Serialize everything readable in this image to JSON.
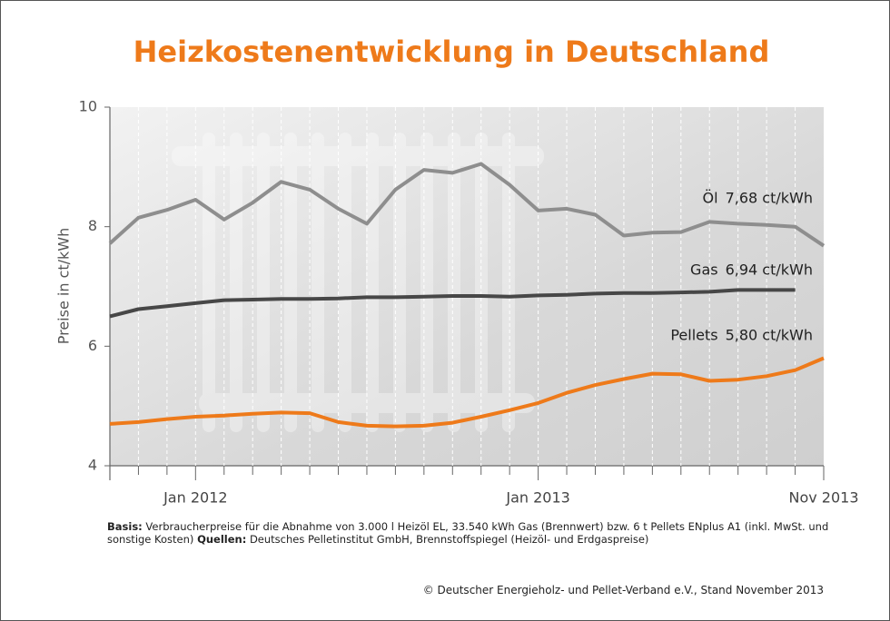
{
  "chart_data": {
    "type": "line",
    "title": "Heizkostenentwicklung in Deutschland",
    "y_label": "Preise in ct/kWh",
    "categories": [
      null,
      null,
      null,
      "Jan 2012",
      null,
      null,
      null,
      null,
      null,
      null,
      null,
      null,
      null,
      null,
      null,
      "Jan 2013",
      null,
      null,
      null,
      null,
      null,
      null,
      null,
      null,
      null,
      "Nov 2013"
    ],
    "ylim": [
      4,
      10
    ],
    "yticks": [
      4,
      6,
      8,
      10
    ],
    "grid": true,
    "series": [
      {
        "name": "Öl",
        "color": "#8e8e8e",
        "end_label": "7,68 ct/kWh",
        "values": [
          7.72,
          8.15,
          8.28,
          8.45,
          8.12,
          8.4,
          8.75,
          8.62,
          8.3,
          8.05,
          8.62,
          8.95,
          8.9,
          9.05,
          8.7,
          8.27,
          8.3,
          8.2,
          7.85,
          7.9,
          7.91,
          8.08,
          8.05,
          8.03,
          8.0,
          7.68
        ]
      },
      {
        "name": "Gas",
        "color": "#474747",
        "end_label": "6,94 ct/kWh",
        "values": [
          6.5,
          6.62,
          6.67,
          6.72,
          6.77,
          6.78,
          6.79,
          6.79,
          6.8,
          6.82,
          6.82,
          6.83,
          6.84,
          6.84,
          6.83,
          6.85,
          6.86,
          6.88,
          6.89,
          6.89,
          6.9,
          6.91,
          6.94,
          6.94,
          6.94,
          null
        ]
      },
      {
        "name": "Pellets",
        "color": "#ee7a1a",
        "end_label": "5,80 ct/kWh",
        "values": [
          4.7,
          4.73,
          4.78,
          4.82,
          4.84,
          4.87,
          4.89,
          4.88,
          4.73,
          4.67,
          4.66,
          4.67,
          4.72,
          4.82,
          4.93,
          5.05,
          5.22,
          5.35,
          5.45,
          5.54,
          5.53,
          5.42,
          5.44,
          5.5,
          5.6,
          5.8
        ]
      }
    ],
    "footnote": [
      {
        "bold": "Basis:",
        "text": " Verbraucherpreise für die Abnahme von 3.000 l Heizöl EL, 33.540 kWh Gas (Brennwert) bzw. 6 t Pellets ENplus A1 (inkl. MwSt. und sonstige Kosten) "
      },
      {
        "bold": "Quellen:",
        "text": " Deutsches Pelletinstitut GmbH, Brennstoffspiegel (Heizöl- und Erdgaspreise)"
      }
    ],
    "copyright": "© Deutscher Energieholz- und Pellet-Verband e.V., Stand November 2013"
  }
}
